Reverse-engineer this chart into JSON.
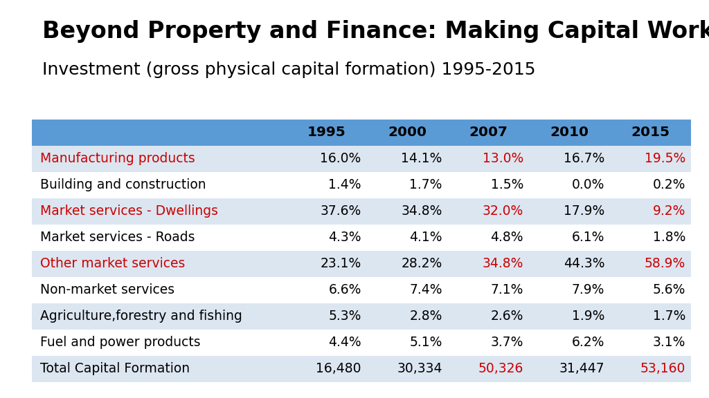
{
  "title": "Beyond Property and Finance: Making Capital Work",
  "subtitle": "Investment (gross physical capital formation) 1995-2015",
  "columns": [
    "",
    "1995",
    "2000",
    "2007",
    "2010",
    "2015"
  ],
  "rows": [
    {
      "label": "Manufacturing products",
      "values": [
        "16.0%",
        "14.1%",
        "13.0%",
        "16.7%",
        "19.5%"
      ],
      "label_color": "#cc0000",
      "value_colors": [
        "#000000",
        "#000000",
        "#cc0000",
        "#000000",
        "#cc0000"
      ]
    },
    {
      "label": "Building and construction",
      "values": [
        "1.4%",
        "1.7%",
        "1.5%",
        "0.0%",
        "0.2%"
      ],
      "label_color": "#000000",
      "value_colors": [
        "#000000",
        "#000000",
        "#000000",
        "#000000",
        "#000000"
      ]
    },
    {
      "label": "Market services - Dwellings",
      "values": [
        "37.6%",
        "34.8%",
        "32.0%",
        "17.9%",
        "9.2%"
      ],
      "label_color": "#cc0000",
      "value_colors": [
        "#000000",
        "#000000",
        "#cc0000",
        "#000000",
        "#cc0000"
      ]
    },
    {
      "label": "Market services - Roads",
      "values": [
        "4.3%",
        "4.1%",
        "4.8%",
        "6.1%",
        "1.8%"
      ],
      "label_color": "#000000",
      "value_colors": [
        "#000000",
        "#000000",
        "#000000",
        "#000000",
        "#000000"
      ]
    },
    {
      "label": "Other market services",
      "values": [
        "23.1%",
        "28.2%",
        "34.8%",
        "44.3%",
        "58.9%"
      ],
      "label_color": "#cc0000",
      "value_colors": [
        "#000000",
        "#000000",
        "#cc0000",
        "#000000",
        "#cc0000"
      ]
    },
    {
      "label": "Non-market services",
      "values": [
        "6.6%",
        "7.4%",
        "7.1%",
        "7.9%",
        "5.6%"
      ],
      "label_color": "#000000",
      "value_colors": [
        "#000000",
        "#000000",
        "#000000",
        "#000000",
        "#000000"
      ]
    },
    {
      "label": "Agriculture,forestry and fishing",
      "values": [
        "5.3%",
        "2.8%",
        "2.6%",
        "1.9%",
        "1.7%"
      ],
      "label_color": "#000000",
      "value_colors": [
        "#000000",
        "#000000",
        "#000000",
        "#000000",
        "#000000"
      ]
    },
    {
      "label": "Fuel and power products",
      "values": [
        "4.4%",
        "5.1%",
        "3.7%",
        "6.2%",
        "3.1%"
      ],
      "label_color": "#000000",
      "value_colors": [
        "#000000",
        "#000000",
        "#000000",
        "#000000",
        "#000000"
      ]
    },
    {
      "label": "Total Capital Formation",
      "values": [
        "16,480",
        "30,334",
        "50,326",
        "31,447",
        "53,160"
      ],
      "label_color": "#000000",
      "value_colors": [
        "#000000",
        "#000000",
        "#cc0000",
        "#000000",
        "#cc0000"
      ]
    }
  ],
  "header_bg": "#5b9bd5",
  "row_bg_even": "#dce6f1",
  "row_bg_odd": "#ffffff",
  "background": "#ffffff",
  "title_fontsize": 24,
  "subtitle_fontsize": 18,
  "table_fontsize": 13.5,
  "header_fontsize": 14.5
}
